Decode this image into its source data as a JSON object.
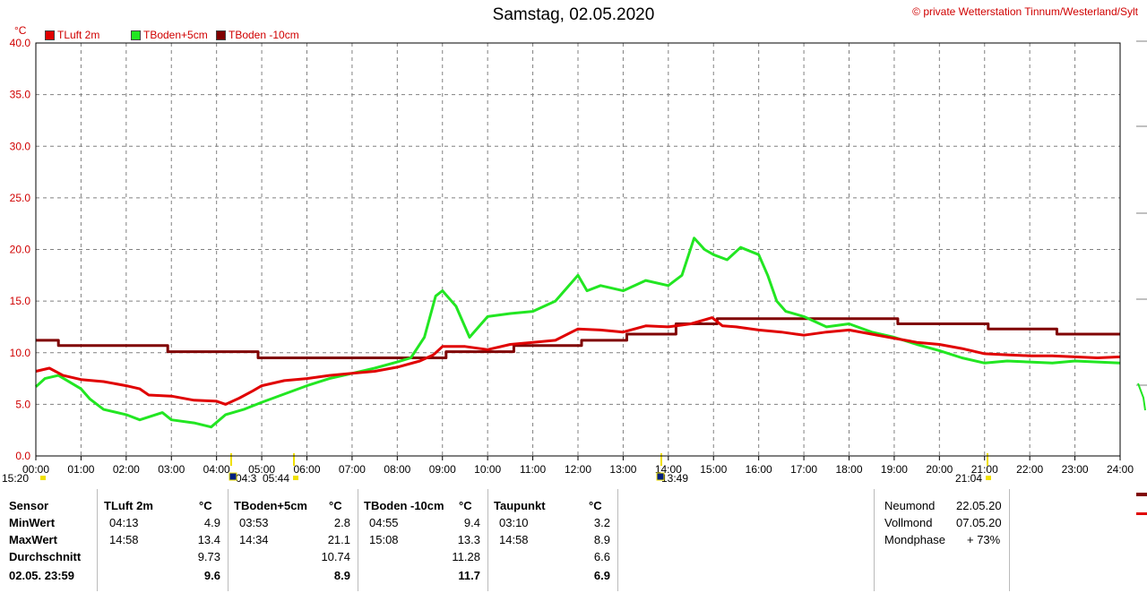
{
  "header": {
    "title": "Samstag, 02.05.2020",
    "copyright": "© private Wetterstation Tinnum/Westerland/Sylt",
    "unit": "°C"
  },
  "legend": [
    {
      "label": "TLuft 2m",
      "color": "#e00000"
    },
    {
      "label": "TBoden+5cm",
      "color": "#22e622"
    },
    {
      "label": "TBoden -10cm",
      "color": "#800000"
    }
  ],
  "chart_data": {
    "type": "line",
    "ylim": [
      0,
      40
    ],
    "xlim": [
      0,
      24
    ],
    "yticks": [
      "0.0",
      "5.0",
      "10.0",
      "15.0",
      "20.0",
      "25.0",
      "30.0",
      "35.0",
      "40.0"
    ],
    "xticks": [
      "00:00",
      "01:00",
      "02:00",
      "03:00",
      "04:00",
      "05:00",
      "06:00",
      "07:00",
      "08:00",
      "09:00",
      "10:00",
      "11:00",
      "12:00",
      "13:00",
      "14:00",
      "15:00",
      "16:00",
      "17:00",
      "18:00",
      "19:00",
      "20:00",
      "21:00",
      "22:00",
      "23:00",
      "24:00"
    ],
    "events": [
      "15:20",
      "04:3",
      "05:44",
      "13:49",
      "21:04"
    ],
    "series": [
      {
        "name": "TLuft 2m",
        "color": "#e00000",
        "x": [
          0,
          0.3,
          0.6,
          1,
          1.5,
          2,
          2.3,
          2.5,
          3,
          3.5,
          4,
          4.2,
          4.5,
          4.8,
          5,
          5.5,
          6,
          6.5,
          7,
          7.5,
          8,
          8.5,
          8.8,
          9,
          9.5,
          10,
          10.5,
          11,
          11.5,
          12,
          12.5,
          13,
          13.5,
          14,
          14.5,
          14.97,
          15.2,
          15.5,
          16,
          16.5,
          17,
          17.5,
          18,
          18.5,
          19,
          19.5,
          20,
          20.5,
          21,
          21.5,
          22,
          22.5,
          23,
          23.5,
          24
        ],
        "y": [
          8.2,
          8.5,
          7.8,
          7.4,
          7.2,
          6.8,
          6.5,
          5.9,
          5.8,
          5.4,
          5.3,
          5.0,
          5.6,
          6.3,
          6.8,
          7.3,
          7.5,
          7.8,
          8.0,
          8.2,
          8.6,
          9.2,
          9.8,
          10.6,
          10.6,
          10.3,
          10.8,
          11.0,
          11.2,
          12.3,
          12.2,
          12.0,
          12.6,
          12.5,
          12.8,
          13.4,
          12.6,
          12.5,
          12.2,
          12.0,
          11.7,
          12.0,
          12.2,
          11.8,
          11.4,
          11.0,
          10.8,
          10.4,
          9.9,
          9.8,
          9.7,
          9.7,
          9.6,
          9.5,
          9.6
        ]
      },
      {
        "name": "TBoden+5cm",
        "color": "#22e622",
        "x": [
          0,
          0.2,
          0.5,
          1,
          1.2,
          1.5,
          2,
          2.3,
          2.8,
          3,
          3.5,
          3.88,
          4.2,
          4.6,
          5,
          5.5,
          6,
          6.5,
          7,
          7.5,
          8,
          8.3,
          8.6,
          8.85,
          9,
          9.3,
          9.6,
          10,
          10.5,
          11,
          11.5,
          12,
          12.2,
          12.5,
          13,
          13.5,
          14,
          14.3,
          14.57,
          14.8,
          15,
          15.3,
          15.6,
          16,
          16.2,
          16.4,
          16.6,
          17,
          17.5,
          18,
          18.5,
          19,
          19.5,
          20,
          20.5,
          21,
          21.5,
          22,
          22.5,
          23,
          23.5,
          24
        ],
        "y": [
          6.7,
          7.5,
          7.8,
          6.5,
          5.5,
          4.5,
          4.0,
          3.5,
          4.2,
          3.5,
          3.2,
          2.8,
          4.0,
          4.5,
          5.2,
          6.0,
          6.8,
          7.5,
          8.0,
          8.5,
          9.1,
          9.5,
          11.5,
          15.5,
          16.0,
          14.5,
          11.5,
          13.5,
          13.8,
          14.0,
          15.0,
          17.5,
          16.0,
          16.5,
          16.0,
          17.0,
          16.5,
          17.5,
          21.1,
          20.0,
          19.5,
          19.0,
          20.2,
          19.5,
          17.5,
          15.0,
          14.0,
          13.5,
          12.5,
          12.8,
          12.0,
          11.5,
          10.8,
          10.2,
          9.5,
          9.0,
          9.2,
          9.1,
          9.0,
          9.2,
          9.1,
          9.0
        ]
      },
      {
        "name": "TBoden -10cm",
        "color": "#800000",
        "x": [
          0,
          0.5,
          0.5,
          2.92,
          2.92,
          4.92,
          4.92,
          9.08,
          9.08,
          10.58,
          10.58,
          12.08,
          12.08,
          13.08,
          13.08,
          14.17,
          14.17,
          15.08,
          15.08,
          17.92,
          17.92,
          19.08,
          19.08,
          21.08,
          21.08,
          22.6,
          22.6,
          24
        ],
        "y": [
          11.2,
          11.2,
          10.7,
          10.7,
          10.1,
          10.1,
          9.5,
          9.5,
          10.1,
          10.1,
          10.7,
          10.7,
          11.2,
          11.2,
          11.8,
          11.8,
          12.8,
          12.8,
          13.3,
          13.3,
          13.3,
          13.3,
          12.8,
          12.8,
          12.3,
          12.3,
          11.8,
          11.8
        ]
      }
    ]
  },
  "table": {
    "sensor_col": {
      "header": "Sensor",
      "rows": [
        "MinWert",
        "MaxWert",
        "Durchschnitt",
        "02.05. 23:59"
      ]
    },
    "columns": [
      {
        "header": "TLuft 2m",
        "unit": "°C",
        "min_time": "04:13",
        "min": "4.9",
        "max_time": "14:58",
        "max": "13.4",
        "avg": "9.73",
        "current": "9.6"
      },
      {
        "header": "TBoden+5cm",
        "unit": "°C",
        "min_time": "03:53",
        "min": "2.8",
        "max_time": "14:34",
        "max": "21.1",
        "avg": "10.74",
        "current": "8.9"
      },
      {
        "header": "TBoden -10cm",
        "unit": "°C",
        "min_time": "04:55",
        "min": "9.4",
        "max_time": "15:08",
        "max": "13.3",
        "avg": "11.28",
        "current": "11.7"
      },
      {
        "header": "Taupunkt",
        "unit": "°C",
        "min_time": "03:10",
        "min": "3.2",
        "max_time": "14:58",
        "max": "8.9",
        "avg": "6.6",
        "current": "6.9"
      }
    ],
    "moon": {
      "rows": [
        {
          "label": "Neumond",
          "value": "22.05.20"
        },
        {
          "label": "Vollmond",
          "value": "07.05.20"
        },
        {
          "label": "Mondphase",
          "value": "+ 73%"
        }
      ]
    }
  }
}
